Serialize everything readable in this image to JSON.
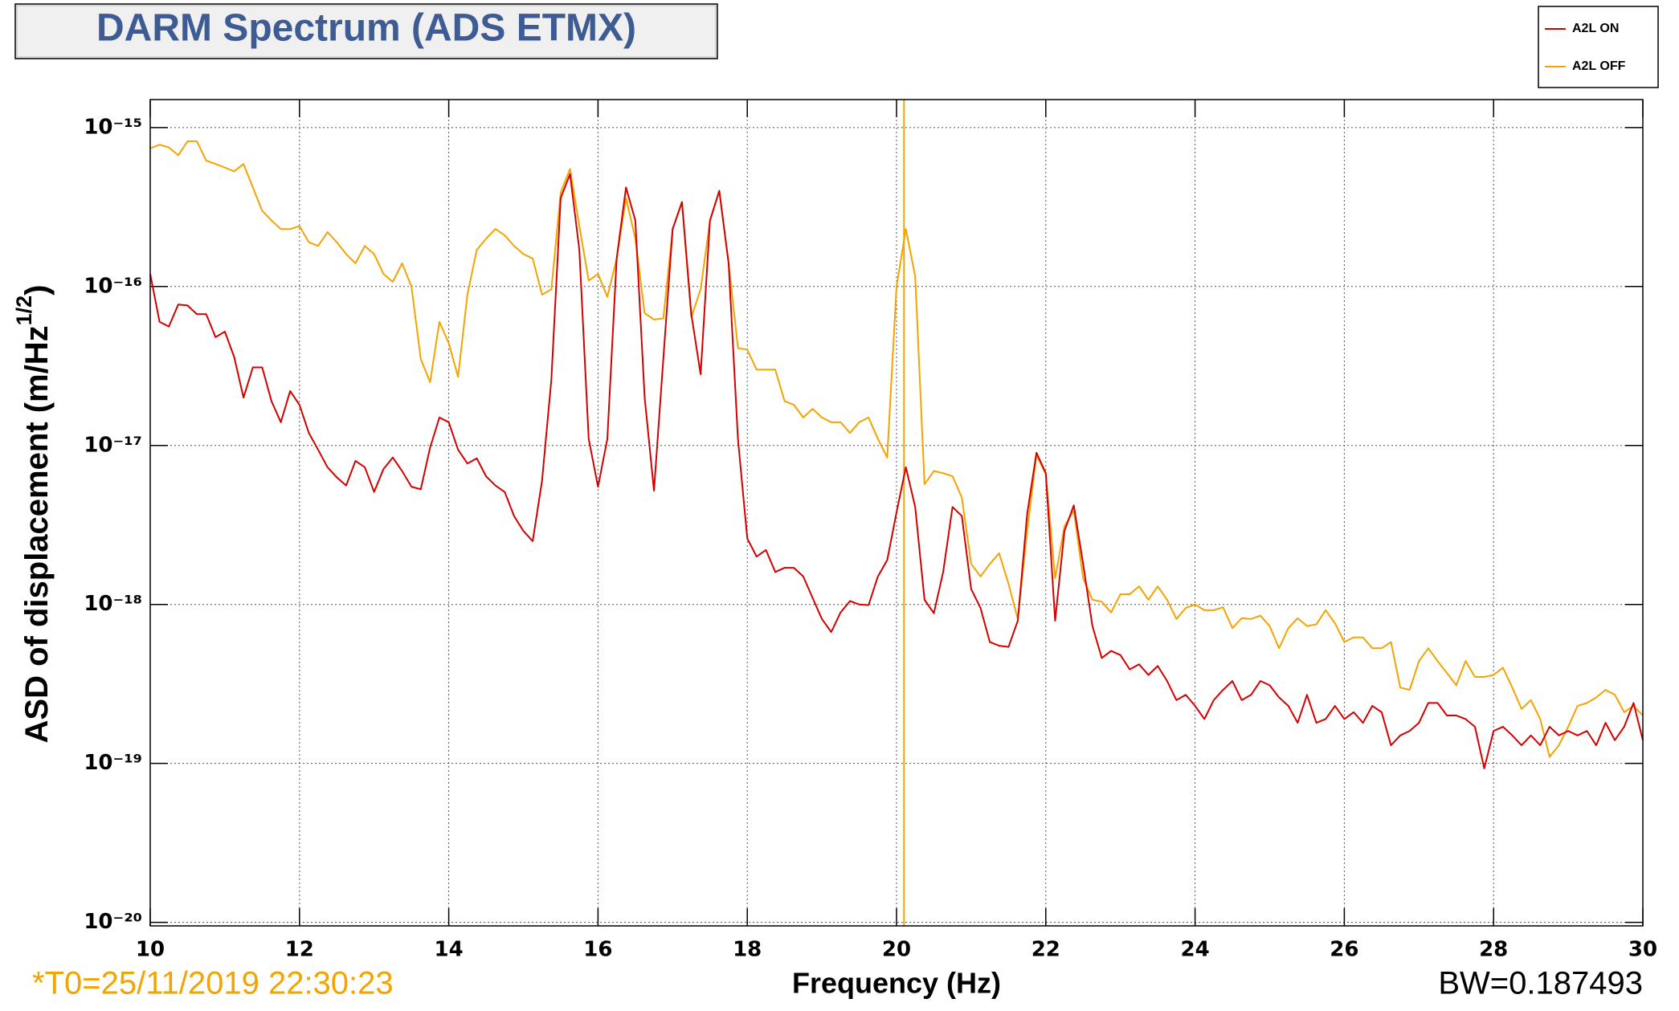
{
  "chart_data": {
    "type": "line",
    "title": "DARM Spectrum (ADS ETMX)",
    "xlabel": "Frequency (Hz)",
    "ylabel": [
      "ASD of displacement (m/Hz",
      "1/2",
      ")"
    ],
    "yscale": "log",
    "grid": true,
    "legend": "top-right",
    "xlim": [
      10,
      30
    ],
    "xticks": [
      10,
      12,
      14,
      16,
      18,
      20,
      22,
      24,
      26,
      28,
      30
    ],
    "ylim": [
      9.5e-21,
      1.5e-15
    ],
    "yticks": [
      {
        "value": 1e-20,
        "label": "10⁻²⁰"
      },
      {
        "value": 1e-19,
        "label": "10⁻¹⁹"
      },
      {
        "value": 1e-18,
        "label": "10⁻¹⁸"
      },
      {
        "value": 1e-17,
        "label": "10⁻¹⁷"
      },
      {
        "value": 1e-16,
        "label": "10⁻¹⁶"
      },
      {
        "value": 1e-15,
        "label": "10⁻¹⁵"
      }
    ],
    "vlines": [
      {
        "x": 20.1,
        "color": "#f5a300"
      }
    ],
    "annotations": [
      {
        "text": "*T0=25/11/2019 22:30:23",
        "color": "#f5a300",
        "position": "bottom-left"
      },
      {
        "text": "BW=0.187493",
        "color": "#000000",
        "position": "bottom-right"
      }
    ],
    "x": [
      10,
      10.125,
      10.25,
      10.375,
      10.5,
      10.625,
      10.75,
      10.875,
      11,
      11.125,
      11.25,
      11.375,
      11.5,
      11.625,
      11.75,
      11.875,
      12,
      12.125,
      12.25,
      12.375,
      12.5,
      12.625,
      12.75,
      12.875,
      13,
      13.125,
      13.25,
      13.375,
      13.5,
      13.625,
      13.75,
      13.875,
      14,
      14.125,
      14.25,
      14.375,
      14.5,
      14.625,
      14.75,
      14.875,
      15,
      15.125,
      15.25,
      15.375,
      15.5,
      15.625,
      15.75,
      15.875,
      16,
      16.125,
      16.25,
      16.375,
      16.5,
      16.625,
      16.75,
      16.875,
      17,
      17.125,
      17.25,
      17.375,
      17.5,
      17.625,
      17.75,
      17.875,
      18,
      18.125,
      18.25,
      18.375,
      18.5,
      18.625,
      18.75,
      18.875,
      19,
      19.125,
      19.25,
      19.375,
      19.5,
      19.625,
      19.75,
      19.875,
      20,
      20.125,
      20.25,
      20.375,
      20.5,
      20.625,
      20.75,
      20.875,
      21,
      21.125,
      21.25,
      21.375,
      21.5,
      21.625,
      21.75,
      21.875,
      22,
      22.125,
      22.25,
      22.375,
      22.5,
      22.625,
      22.75,
      22.875,
      23,
      23.125,
      23.25,
      23.375,
      23.5,
      23.625,
      23.75,
      23.875,
      24,
      24.125,
      24.25,
      24.375,
      24.5,
      24.625,
      24.75,
      24.875,
      25,
      25.125,
      25.25,
      25.375,
      25.5,
      25.625,
      25.75,
      25.875,
      26,
      26.125,
      26.25,
      26.375,
      26.5,
      26.625,
      26.75,
      26.875,
      27,
      27.125,
      27.25,
      27.375,
      27.5,
      27.625,
      27.75,
      27.875,
      28,
      28.125,
      28.25,
      28.375,
      28.5,
      28.625,
      28.75,
      28.875,
      29,
      29.125,
      29.25,
      29.375,
      29.5,
      29.625,
      29.75,
      29.875,
      30
    ],
    "series": [
      {
        "name": "A2L ON",
        "color": "#d40000",
        "values": [
          1.2e-16,
          6e-17,
          5.6e-17,
          7.7e-17,
          7.6e-17,
          6.7e-17,
          6.7e-17,
          4.8e-17,
          5.2e-17,
          3.6e-17,
          2e-17,
          3.1e-17,
          3.1e-17,
          1.9e-17,
          1.4e-17,
          2.2e-17,
          1.8e-17,
          1.2e-17,
          9.4e-18,
          7.3e-18,
          6.3e-18,
          5.6e-18,
          8e-18,
          7.3e-18,
          5.1e-18,
          7.1e-18,
          8.4e-18,
          6.9e-18,
          5.5e-18,
          5.3e-18,
          9.7e-18,
          1.5e-17,
          1.4e-17,
          9.4e-18,
          7.7e-18,
          8.3e-18,
          6.4e-18,
          5.6e-18,
          5.1e-18,
          3.6e-18,
          2.9e-18,
          2.5e-18,
          6e-18,
          2.6e-17,
          3.6e-16,
          5.1e-16,
          1.7e-16,
          1.1e-17,
          5.5e-18,
          1.1e-17,
          1.5e-16,
          4.2e-16,
          2.6e-16,
          2e-17,
          5.2e-18,
          3.5e-17,
          2.3e-16,
          3.4e-16,
          6.7e-17,
          2.8e-17,
          2.6e-16,
          4e-16,
          1.4e-16,
          1.1e-17,
          2.6e-18,
          2e-18,
          2.2e-18,
          1.6e-18,
          1.7e-18,
          1.7e-18,
          1.5e-18,
          1.1e-18,
          8.1e-19,
          6.7e-19,
          8.9e-19,
          1.05e-18,
          1e-18,
          9.9e-19,
          1.5e-18,
          1.9e-18,
          3.8e-18,
          7.3e-18,
          4.1e-18,
          1.07e-18,
          8.8e-19,
          1.6e-18,
          4.1e-18,
          3.6e-18,
          1.25e-18,
          9.5e-19,
          5.8e-19,
          5.5e-19,
          5.4e-19,
          7.9e-19,
          3.7e-18,
          9e-18,
          6.7e-18,
          7.9e-19,
          2.9e-18,
          4.2e-18,
          1.8e-18,
          7.3e-19,
          4.6e-19,
          5.1e-19,
          4.8e-19,
          3.9e-19,
          4.2e-19,
          3.6e-19,
          4.1e-19,
          3.3e-19,
          2.5e-19,
          2.7e-19,
          2.3e-19,
          1.9e-19,
          2.5e-19,
          2.9e-19,
          3.3e-19,
          2.5e-19,
          2.7e-19,
          3.3e-19,
          3.1e-19,
          2.6e-19,
          2.3e-19,
          1.8e-19,
          2.7e-19,
          1.8e-19,
          1.9e-19,
          2.3e-19,
          1.9e-19,
          2.1e-19,
          1.8e-19,
          2.3e-19,
          2.1e-19,
          1.3e-19,
          1.5e-19,
          1.6e-19,
          1.8e-19,
          2.4e-19,
          2.4e-19,
          2e-19,
          2e-19,
          1.9e-19,
          1.7e-19,
          9.3e-20,
          1.6e-19,
          1.7e-19,
          1.5e-19,
          1.3e-19,
          1.5e-19,
          1.3e-19,
          1.7e-19,
          1.5e-19,
          1.6e-19,
          1.5e-19,
          1.6e-19,
          1.3e-19,
          1.8e-19,
          1.4e-19,
          1.7e-19,
          2.4e-19,
          1.4e-19
        ]
      },
      {
        "name": "A2L OFF",
        "color": "#f5a300",
        "values": [
          7.4e-16,
          7.8e-16,
          7.5e-16,
          6.7e-16,
          8.2e-16,
          8.2e-16,
          6.2e-16,
          5.9e-16,
          5.6e-16,
          5.3e-16,
          5.9e-16,
          4.2e-16,
          3e-16,
          2.6e-16,
          2.3e-16,
          2.3e-16,
          2.4e-16,
          1.9e-16,
          1.8e-16,
          2.2e-16,
          1.9e-16,
          1.6e-16,
          1.4e-16,
          1.8e-16,
          1.6e-16,
          1.2e-16,
          1.07e-16,
          1.4e-16,
          1e-16,
          3.5e-17,
          2.5e-17,
          6e-17,
          4.4e-17,
          2.7e-17,
          8.9e-17,
          1.7e-16,
          2e-16,
          2.3e-16,
          2.1e-16,
          1.8e-16,
          1.6e-16,
          1.5e-16,
          8.9e-17,
          9.6e-17,
          3.9e-16,
          5.5e-16,
          2.4e-16,
          1.09e-16,
          1.2e-16,
          8.6e-17,
          1.5e-16,
          3.6e-16,
          2e-16,
          6.8e-17,
          6.2e-17,
          6.3e-17,
          2.3e-16,
          3.4e-16,
          6.4e-17,
          9.6e-17,
          2.6e-16,
          4e-16,
          1.4e-16,
          4.1e-17,
          4e-17,
          3e-17,
          3e-17,
          3e-17,
          1.9e-17,
          1.8e-17,
          1.5e-17,
          1.7e-17,
          1.5e-17,
          1.4e-17,
          1.4e-17,
          1.2e-17,
          1.4e-17,
          1.5e-17,
          1.1e-17,
          8.4e-18,
          1e-16,
          2.3e-16,
          1.16e-16,
          5.7e-18,
          6.9e-18,
          6.7e-18,
          6.4e-18,
          4.7e-18,
          1.8e-18,
          1.5e-18,
          1.8e-18,
          2.1e-18,
          1.35e-18,
          8.1e-19,
          2.9e-18,
          8.7e-18,
          6.6e-18,
          1.46e-18,
          3.1e-18,
          3.9e-18,
          1.46e-18,
          1.07e-18,
          1.04e-18,
          8.9e-19,
          1.16e-18,
          1.16e-18,
          1.3e-18,
          1.07e-18,
          1.3e-18,
          1.07e-18,
          8.1e-19,
          9.5e-19,
          1e-18,
          9.2e-19,
          9.2e-19,
          9.6e-19,
          7.1e-19,
          8.2e-19,
          8.1e-19,
          8.5e-19,
          7.3e-19,
          5.3e-19,
          7.1e-19,
          8.2e-19,
          7.3e-19,
          7.5e-19,
          9.2e-19,
          7.6e-19,
          5.8e-19,
          6.2e-19,
          6.2e-19,
          5.3e-19,
          5.3e-19,
          5.8e-19,
          3e-19,
          2.9e-19,
          4.4e-19,
          5.3e-19,
          4.4e-19,
          3.7e-19,
          3.1e-19,
          4.4e-19,
          3.5e-19,
          3.5e-19,
          3.6e-19,
          4e-19,
          3e-19,
          2.2e-19,
          2.5e-19,
          1.9e-19,
          1.1e-19,
          1.3e-19,
          1.7e-19,
          2.3e-19,
          2.4e-19,
          2.6e-19,
          2.9e-19,
          2.7e-19,
          2.1e-19,
          2.3e-19,
          2e-19
        ]
      }
    ]
  }
}
